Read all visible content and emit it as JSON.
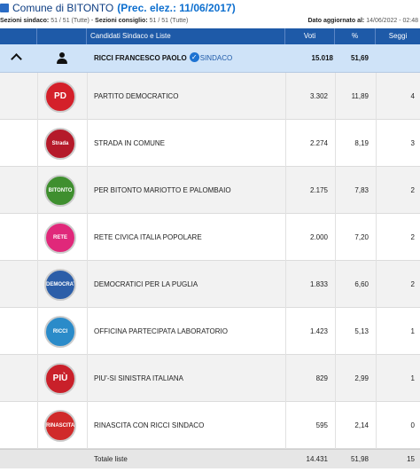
{
  "header": {
    "comune_label": "Comune di BITONTO",
    "prev_label": "(Prec. elez.: 11/06/2017)",
    "sezioni_sindaco_label": "Sezioni sindaco:",
    "sezioni_sindaco_value": "51 / 51 (Tutte)",
    "separator": "-",
    "sezioni_consiglio_label": "Sezioni consiglio:",
    "sezioni_consiglio_value": "51 / 51 (Tutte)",
    "updated_label": "Dato aggiornato al:",
    "updated_value": "14/06/2022 - 02:48"
  },
  "table": {
    "columns": {
      "candidati": "Candidati Sindaco e Liste",
      "voti": "Voti",
      "pct": "%",
      "seggi": "Seggi"
    },
    "candidate": {
      "name": "RICCI FRANCESCO PAOLO",
      "check": "✓",
      "role": "SINDACO",
      "voti": "15.018",
      "pct": "51,69"
    },
    "lists": [
      {
        "name": "PARTITO DEMOCRATICO",
        "voti": "3.302",
        "pct": "11,89",
        "seggi": "4",
        "logo_color": "#d4202a",
        "logo_text": "PD"
      },
      {
        "name": "STRADA IN COMUNE",
        "voti": "2.274",
        "pct": "8,19",
        "seggi": "3",
        "logo_color": "#b51a2a",
        "logo_text": "Strada comune"
      },
      {
        "name": "PER BITONTO MARIOTTO E PALOMBAIO",
        "voti": "2.175",
        "pct": "7,83",
        "seggi": "2",
        "logo_color": "#3f8f2f",
        "logo_text": "BITONTO"
      },
      {
        "name": "RETE CIVICA ITALIA POPOLARE",
        "voti": "2.000",
        "pct": "7,20",
        "seggi": "2",
        "logo_color": "#e0287a",
        "logo_text": "RETE Civica"
      },
      {
        "name": "DEMOCRATICI PER LA PUGLIA",
        "voti": "1.833",
        "pct": "6,60",
        "seggi": "2",
        "logo_color": "#2c5ea8",
        "logo_text": "DEMOCRATICI"
      },
      {
        "name": "OFFICINA PARTECIPATA LABORATORIO",
        "voti": "1.423",
        "pct": "5,13",
        "seggi": "1",
        "logo_color": "#2b8bc9",
        "logo_text": "RICCI"
      },
      {
        "name": "PIU'-SI SINISTRA ITALIANA",
        "voti": "829",
        "pct": "2,99",
        "seggi": "1",
        "logo_color": "#c9202a",
        "logo_text": "PIÙ"
      },
      {
        "name": "RINASCITA CON RICCI SINDACO",
        "voti": "595",
        "pct": "2,14",
        "seggi": "0",
        "logo_color": "#d02a2a",
        "logo_text": "RINASCITA"
      }
    ],
    "total": {
      "label": "Totale liste",
      "voti": "14.431",
      "pct": "51,98",
      "seggi": "15"
    }
  },
  "colors": {
    "header_bg": "#1e5aa8",
    "candidate_bg": "#cfe3f8",
    "title_color": "#0d3d82",
    "accent": "#0d6fcf"
  }
}
